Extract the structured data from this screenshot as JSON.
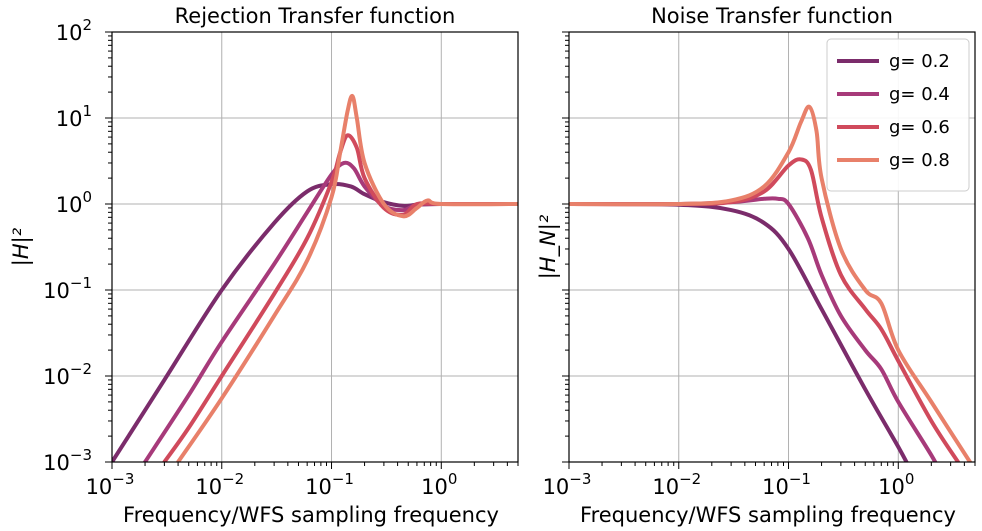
{
  "chart_data": [
    {
      "type": "line",
      "title": "Rejection Transfer function",
      "xlabel": "Frequency/WFS sampling frequency",
      "ylabel": "|H|²",
      "xscale": "log",
      "yscale": "log",
      "xlim": [
        0.001,
        5
      ],
      "ylim": [
        0.001,
        100
      ],
      "xticks": [
        {
          "base": "10",
          "exp": "−3"
        },
        {
          "base": "10",
          "exp": "−2"
        },
        {
          "base": "10",
          "exp": "−1"
        },
        {
          "base": "10",
          "exp": "0"
        }
      ],
      "yticks": [
        {
          "base": "10",
          "exp": "−3"
        },
        {
          "base": "10",
          "exp": "−2"
        },
        {
          "base": "10",
          "exp": "−1"
        },
        {
          "base": "10",
          "exp": "0"
        },
        {
          "base": "10",
          "exp": "1"
        },
        {
          "base": "10",
          "exp": "2"
        }
      ],
      "grid": true,
      "series": [
        {
          "name": "g= 0.2",
          "color": "#7b2c6b",
          "x": [
            0.001,
            0.003,
            0.01,
            0.03,
            0.06,
            0.1,
            0.15,
            0.2,
            0.3,
            0.45,
            0.6,
            1,
            5
          ],
          "y": [
            0.001,
            0.009,
            0.1,
            0.6,
            1.4,
            1.7,
            1.6,
            1.3,
            1.05,
            0.95,
            0.98,
            1.0,
            1.0
          ]
        },
        {
          "name": "g= 0.4",
          "color": "#a73a7a",
          "x": [
            0.002,
            0.005,
            0.01,
            0.03,
            0.06,
            0.1,
            0.13,
            0.16,
            0.2,
            0.3,
            0.45,
            0.6,
            1,
            5
          ],
          "y": [
            0.001,
            0.006,
            0.025,
            0.2,
            0.8,
            2.2,
            3.0,
            2.6,
            1.6,
            0.95,
            0.85,
            0.98,
            1.0,
            1.0
          ]
        },
        {
          "name": "g= 0.6",
          "color": "#d04a5c",
          "x": [
            0.003,
            0.005,
            0.01,
            0.03,
            0.06,
            0.1,
            0.12,
            0.14,
            0.17,
            0.2,
            0.3,
            0.45,
            0.6,
            1,
            5
          ],
          "y": [
            0.001,
            0.0025,
            0.01,
            0.09,
            0.4,
            1.8,
            4.0,
            6.3,
            4.5,
            2.0,
            0.9,
            0.75,
            1.0,
            1.0,
            1.0
          ]
        },
        {
          "name": "g= 0.8",
          "color": "#e8806a",
          "x": [
            0.004,
            0.01,
            0.03,
            0.06,
            0.1,
            0.12,
            0.14,
            0.155,
            0.17,
            0.2,
            0.3,
            0.45,
            0.6,
            0.75,
            1,
            5
          ],
          "y": [
            0.001,
            0.0055,
            0.05,
            0.22,
            1.2,
            4.0,
            12.0,
            18.0,
            10.0,
            3.0,
            1.0,
            0.72,
            0.9,
            1.1,
            1.0,
            1.0
          ]
        }
      ]
    },
    {
      "type": "line",
      "title": "Noise Transfer function",
      "xlabel": "Frequency/WFS sampling frequency",
      "ylabel": "|H_N|²",
      "xscale": "log",
      "yscale": "log",
      "xlim": [
        0.001,
        5
      ],
      "ylim": [
        0.001,
        100
      ],
      "xticks": [
        {
          "base": "10",
          "exp": "−3"
        },
        {
          "base": "10",
          "exp": "−2"
        },
        {
          "base": "10",
          "exp": "−1"
        },
        {
          "base": "10",
          "exp": "0"
        }
      ],
      "grid": true,
      "legend": "top-right",
      "series": [
        {
          "name": "g= 0.2",
          "color": "#7b2c6b",
          "x": [
            0.001,
            0.01,
            0.03,
            0.06,
            0.1,
            0.2,
            0.5,
            1.0,
            1.3
          ],
          "y": [
            1.0,
            0.98,
            0.85,
            0.6,
            0.3,
            0.06,
            0.007,
            0.0015,
            0.0008
          ]
        },
        {
          "name": "g= 0.4",
          "color": "#a73a7a",
          "x": [
            0.001,
            0.01,
            0.03,
            0.06,
            0.08,
            0.1,
            0.15,
            0.2,
            0.3,
            0.5,
            0.7,
            1.0,
            2.0,
            2.5
          ],
          "y": [
            1.0,
            1.0,
            1.05,
            1.15,
            1.15,
            1.0,
            0.4,
            0.15,
            0.05,
            0.02,
            0.012,
            0.005,
            0.0012,
            0.0007
          ]
        },
        {
          "name": "g= 0.6",
          "color": "#d04a5c",
          "x": [
            0.001,
            0.01,
            0.03,
            0.06,
            0.1,
            0.13,
            0.16,
            0.2,
            0.3,
            0.5,
            0.7,
            1.0,
            2.0,
            3.5
          ],
          "y": [
            1.0,
            1.0,
            1.05,
            1.4,
            2.8,
            3.3,
            2.5,
            0.7,
            0.15,
            0.06,
            0.035,
            0.015,
            0.003,
            0.001
          ]
        },
        {
          "name": "g= 0.8",
          "color": "#e8806a",
          "x": [
            0.001,
            0.01,
            0.03,
            0.06,
            0.1,
            0.13,
            0.155,
            0.18,
            0.2,
            0.3,
            0.5,
            0.7,
            1.0,
            2.0,
            4.5
          ],
          "y": [
            1.0,
            1.0,
            1.1,
            1.6,
            4.0,
            9.0,
            13.5,
            7.0,
            2.0,
            0.3,
            0.1,
            0.07,
            0.02,
            0.005,
            0.001
          ]
        }
      ]
    }
  ]
}
